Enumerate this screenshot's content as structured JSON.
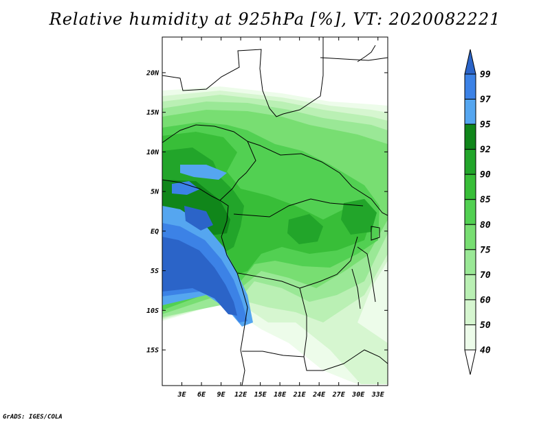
{
  "title": "Relative humidity at 925hPa [%], VT: 2020082221",
  "credit": "GrADS: IGES/COLA",
  "map": {
    "lon_range": [
      0,
      34.5
    ],
    "lat_range": [
      -19.5,
      24.5
    ],
    "lat_ticks": [
      {
        "value": 20,
        "label": "20N"
      },
      {
        "value": 15,
        "label": "15N"
      },
      {
        "value": 10,
        "label": "10N"
      },
      {
        "value": 5,
        "label": "5N"
      },
      {
        "value": 0,
        "label": "EQ"
      },
      {
        "value": -5,
        "label": "5S"
      },
      {
        "value": -10,
        "label": "10S"
      },
      {
        "value": -15,
        "label": "15S"
      }
    ],
    "lon_ticks": [
      {
        "value": 3,
        "label": "3E"
      },
      {
        "value": 6,
        "label": "6E"
      },
      {
        "value": 9,
        "label": "9E"
      },
      {
        "value": 12,
        "label": "12E"
      },
      {
        "value": 15,
        "label": "15E"
      },
      {
        "value": 18,
        "label": "18E"
      },
      {
        "value": 21,
        "label": "21E"
      },
      {
        "value": 24,
        "label": "24E"
      },
      {
        "value": 27,
        "label": "27E"
      },
      {
        "value": 30,
        "label": "30E"
      },
      {
        "value": 33,
        "label": "33E"
      }
    ]
  },
  "colorbar": {
    "levels": [
      "99",
      "97",
      "95",
      "92",
      "90",
      "85",
      "80",
      "75",
      "70",
      "60",
      "50",
      "40"
    ],
    "colors": [
      "#2b64c8",
      "#3c82e6",
      "#55a6f0",
      "#10861a",
      "#22a52a",
      "#38be38",
      "#52d052",
      "#78de72",
      "#9ae896",
      "#baf0b4",
      "#d6f6d0",
      "#edfcea",
      "#ffffff"
    ]
  }
}
